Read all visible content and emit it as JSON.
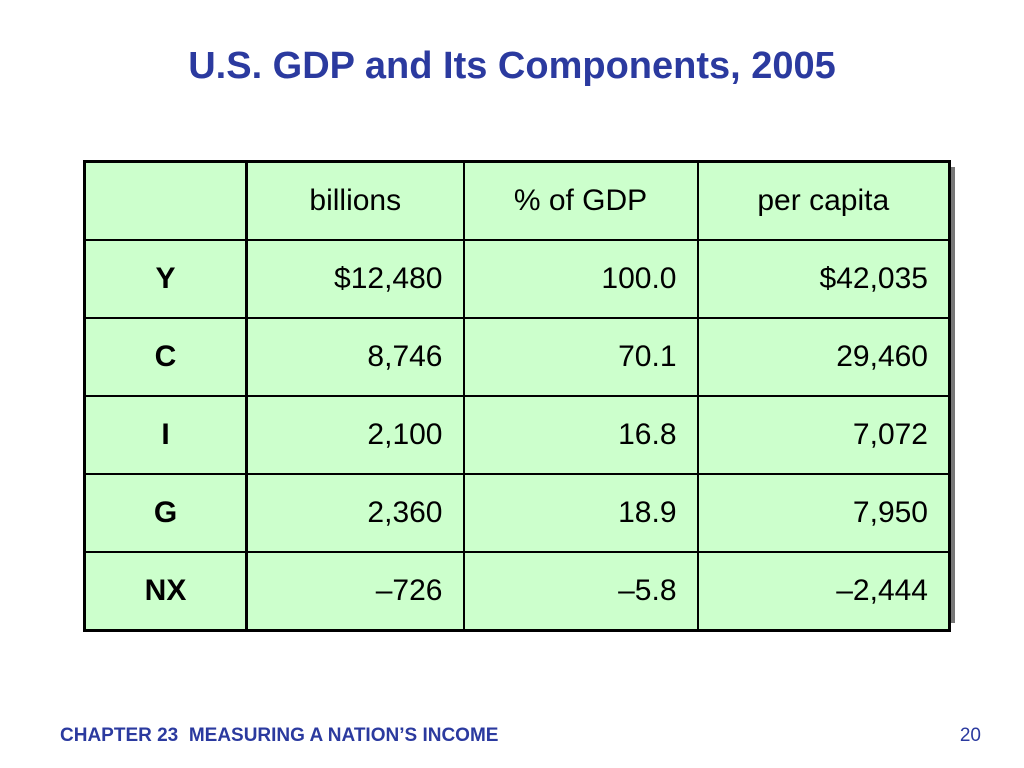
{
  "slide": {
    "title": "U.S. GDP and Its Components, 2005"
  },
  "table": {
    "headers": [
      "",
      "billions",
      "% of GDP",
      "per capita"
    ],
    "rows": [
      {
        "label": "Y",
        "billions": "$12,480",
        "pct_gdp": "100.0",
        "per_capita": "$42,035"
      },
      {
        "label": "C",
        "billions": "8,746",
        "pct_gdp": "70.1",
        "per_capita": "29,460"
      },
      {
        "label": "I",
        "billions": "2,100",
        "pct_gdp": "16.8",
        "per_capita": "7,072"
      },
      {
        "label": "G",
        "billions": "2,360",
        "pct_gdp": "18.9",
        "per_capita": "7,950"
      },
      {
        "label": "NX",
        "billions": "–726",
        "pct_gdp": "–5.8",
        "per_capita": "–2,444"
      }
    ]
  },
  "footer": {
    "chapter": "CHAPTER 23",
    "chapter_title": "MEASURING A NATION’S INCOME",
    "page_number": "20"
  },
  "colors": {
    "title": "#2b3a9f",
    "table_fill": "#ccffcc",
    "shadow": "#777777"
  }
}
